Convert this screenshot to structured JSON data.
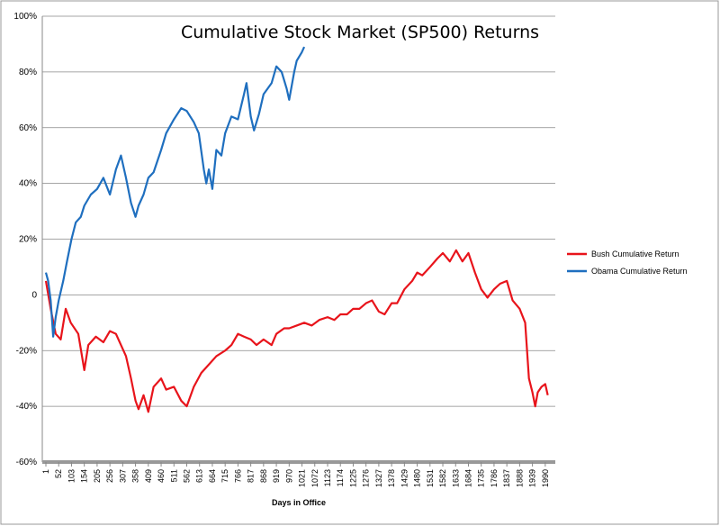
{
  "chart_data": {
    "type": "line",
    "title": "Cumulative Stock Market (SP500) Returns",
    "x_label": "Days in Office",
    "xlim": [
      1,
      2030
    ],
    "xticks": [
      1,
      52,
      103,
      154,
      205,
      256,
      307,
      358,
      409,
      460,
      511,
      562,
      613,
      664,
      715,
      766,
      817,
      868,
      919,
      970,
      1021,
      1072,
      1123,
      1174,
      1225,
      1276,
      1327,
      1378,
      1429,
      1480,
      1531,
      1582,
      1633,
      1684,
      1735,
      1786,
      1837,
      1888,
      1939,
      1990
    ],
    "ylim": [
      -60,
      100
    ],
    "yticks": [
      {
        "value": -60,
        "label": "-60%"
      },
      {
        "value": -40,
        "label": "-40%"
      },
      {
        "value": -20,
        "label": "-20%"
      },
      {
        "value": 0,
        "label": "0"
      },
      {
        "value": 20,
        "label": "20%"
      },
      {
        "value": 40,
        "label": "40%"
      },
      {
        "value": 60,
        "label": "60%"
      },
      {
        "value": 80,
        "label": "80%"
      },
      {
        "value": 100,
        "label": "100%"
      }
    ],
    "grid": true,
    "legend": "right",
    "series": [
      {
        "name": "Bush Cumulative Return",
        "color": "#e8141b",
        "x": [
          1,
          20,
          40,
          60,
          80,
          100,
          130,
          154,
          170,
          200,
          230,
          256,
          280,
          300,
          320,
          340,
          358,
          370,
          390,
          409,
          430,
          460,
          480,
          511,
          540,
          562,
          590,
          620,
          650,
          680,
          715,
          740,
          766,
          790,
          817,
          840,
          868,
          900,
          919,
          950,
          970,
          1000,
          1030,
          1060,
          1090,
          1123,
          1150,
          1174,
          1200,
          1225,
          1250,
          1276,
          1300,
          1327,
          1350,
          1378,
          1400,
          1429,
          1460,
          1480,
          1500,
          1531,
          1560,
          1582,
          1610,
          1635,
          1660,
          1684,
          1710,
          1735,
          1760,
          1786,
          1810,
          1837,
          1860,
          1888,
          1910,
          1925,
          1939,
          1950,
          1960,
          1975,
          1990,
          2000
        ],
        "values": [
          5,
          -5,
          -14,
          -16,
          -5,
          -10,
          -14,
          -27,
          -18,
          -15,
          -17,
          -13,
          -14,
          -18,
          -22,
          -30,
          -38,
          -41,
          -36,
          -42,
          -33,
          -30,
          -34,
          -33,
          -38,
          -40,
          -33,
          -28,
          -25,
          -22,
          -20,
          -18,
          -14,
          -15,
          -16,
          -18,
          -16,
          -18,
          -14,
          -12,
          -12,
          -11,
          -10,
          -11,
          -9,
          -8,
          -9,
          -7,
          -7,
          -5,
          -5,
          -3,
          -2,
          -6,
          -7,
          -3,
          -3,
          2,
          5,
          8,
          7,
          10,
          13,
          15,
          12,
          16,
          12,
          15,
          8,
          2,
          -1,
          2,
          4,
          5,
          -2,
          -5,
          -10,
          -30,
          -35,
          -40,
          -35,
          -33,
          -32,
          -36
        ]
      },
      {
        "name": "Obama Cumulative Return",
        "color": "#1f6fbf",
        "x": [
          1,
          10,
          20,
          30,
          40,
          52,
          70,
          85,
          103,
          120,
          140,
          154,
          180,
          205,
          230,
          256,
          280,
          300,
          320,
          340,
          358,
          370,
          390,
          409,
          430,
          460,
          480,
          511,
          540,
          562,
          590,
          610,
          630,
          640,
          650,
          664,
          680,
          700,
          715,
          740,
          766,
          790,
          800,
          817,
          830,
          850,
          868,
          900,
          919,
          940,
          960,
          970,
          990,
          1000,
          1020,
          1030
        ],
        "values": [
          8,
          5,
          -2,
          -15,
          -8,
          -2,
          5,
          12,
          20,
          26,
          28,
          32,
          36,
          38,
          42,
          36,
          45,
          50,
          42,
          33,
          28,
          32,
          36,
          42,
          44,
          52,
          58,
          63,
          67,
          66,
          62,
          58,
          45,
          40,
          45,
          38,
          52,
          50,
          58,
          64,
          63,
          72,
          76,
          64,
          59,
          65,
          72,
          76,
          82,
          80,
          74,
          70,
          80,
          84,
          87,
          89
        ]
      }
    ]
  }
}
